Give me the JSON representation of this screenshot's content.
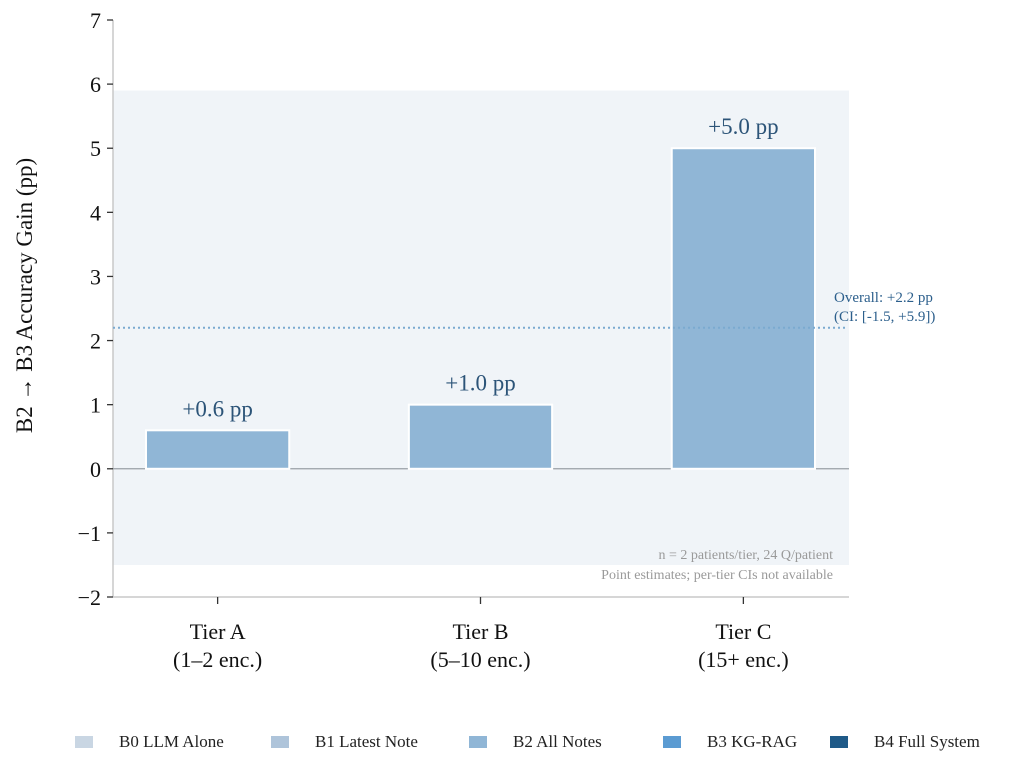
{
  "chart_data": {
    "type": "bar",
    "categories": [
      [
        "Tier A",
        "(1–2 enc.)"
      ],
      [
        "Tier B",
        "(5–10 enc.)"
      ],
      [
        "Tier C",
        "(15+ enc.)"
      ]
    ],
    "values": [
      0.6,
      1.0,
      5.0
    ],
    "data_labels": [
      "+0.6 pp",
      "+1.0 pp",
      "+5.0 pp"
    ],
    "ylabel": "B2 → B3 Accuracy Gain (pp)",
    "ylim": [
      -2,
      7
    ],
    "yticks": [
      -2,
      -1,
      0,
      1,
      2,
      3,
      4,
      5,
      6,
      7
    ],
    "ytick_labels": [
      "−2",
      "−1",
      "0",
      "1",
      "2",
      "3",
      "4",
      "5",
      "6",
      "7"
    ],
    "ci_band": [
      -1.5,
      5.9
    ],
    "overall": {
      "value": 2.2,
      "label_lines": [
        "Overall: +2.2 pp",
        "(CI: [-1.5, +5.9])"
      ]
    },
    "notes": [
      "n = 2 patients/tier, 24 Q/patient",
      "Point estimates; per-tier CIs not available"
    ],
    "grid": false,
    "legend_position": "bottom",
    "legend": [
      {
        "label": "B0 LLM Alone",
        "color": "#c9d6e3"
      },
      {
        "label": "B1 Latest Note",
        "color": "#aec4da"
      },
      {
        "label": "B2 All Notes",
        "color": "#90b6d6"
      },
      {
        "label": "B3 KG-RAG",
        "color": "#5b9bd2"
      },
      {
        "label": "B4 Full System",
        "color": "#1f5a88"
      }
    ],
    "colors": {
      "bar": "#90b6d6",
      "ci_band": "#f0f4f8",
      "overall_line": "#7aaad0",
      "zero_line": "#9aa0a6"
    }
  }
}
